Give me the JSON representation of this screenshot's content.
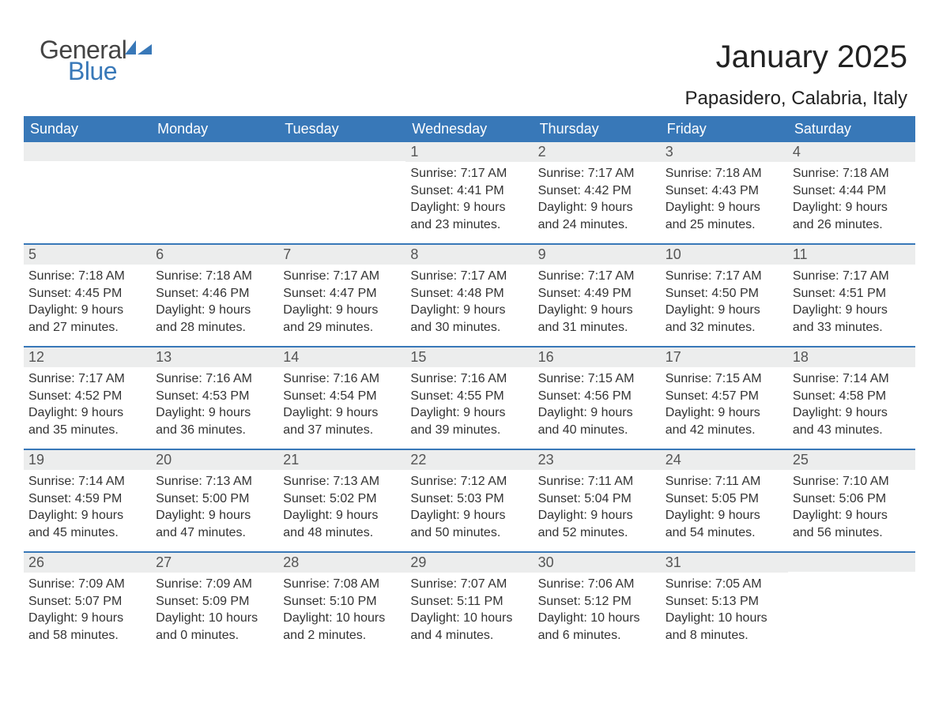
{
  "logo": {
    "text1": "General",
    "text2": "Blue",
    "color1": "#444444",
    "color2": "#3878b8"
  },
  "title": "January 2025",
  "subtitle": "Papasidero, Calabria, Italy",
  "colors": {
    "header_bg": "#3878b8",
    "header_text": "#ffffff",
    "daynum_bg": "#eceded",
    "text": "#333333",
    "page_bg": "#ffffff"
  },
  "typography": {
    "title_fontsize": 40,
    "subtitle_fontsize": 24,
    "weekday_fontsize": 18,
    "daynum_fontsize": 18,
    "body_fontsize": 16,
    "font_family": "Arial"
  },
  "weekdays": [
    "Sunday",
    "Monday",
    "Tuesday",
    "Wednesday",
    "Thursday",
    "Friday",
    "Saturday"
  ],
  "weeks": [
    [
      {
        "n": "",
        "sunrise": "",
        "sunset": "",
        "day_h": "",
        "day_m": ""
      },
      {
        "n": "",
        "sunrise": "",
        "sunset": "",
        "day_h": "",
        "day_m": ""
      },
      {
        "n": "",
        "sunrise": "",
        "sunset": "",
        "day_h": "",
        "day_m": ""
      },
      {
        "n": "1",
        "sunrise": "7:17 AM",
        "sunset": "4:41 PM",
        "day_h": "9",
        "day_m": "23"
      },
      {
        "n": "2",
        "sunrise": "7:17 AM",
        "sunset": "4:42 PM",
        "day_h": "9",
        "day_m": "24"
      },
      {
        "n": "3",
        "sunrise": "7:18 AM",
        "sunset": "4:43 PM",
        "day_h": "9",
        "day_m": "25"
      },
      {
        "n": "4",
        "sunrise": "7:18 AM",
        "sunset": "4:44 PM",
        "day_h": "9",
        "day_m": "26"
      }
    ],
    [
      {
        "n": "5",
        "sunrise": "7:18 AM",
        "sunset": "4:45 PM",
        "day_h": "9",
        "day_m": "27"
      },
      {
        "n": "6",
        "sunrise": "7:18 AM",
        "sunset": "4:46 PM",
        "day_h": "9",
        "day_m": "28"
      },
      {
        "n": "7",
        "sunrise": "7:17 AM",
        "sunset": "4:47 PM",
        "day_h": "9",
        "day_m": "29"
      },
      {
        "n": "8",
        "sunrise": "7:17 AM",
        "sunset": "4:48 PM",
        "day_h": "9",
        "day_m": "30"
      },
      {
        "n": "9",
        "sunrise": "7:17 AM",
        "sunset": "4:49 PM",
        "day_h": "9",
        "day_m": "31"
      },
      {
        "n": "10",
        "sunrise": "7:17 AM",
        "sunset": "4:50 PM",
        "day_h": "9",
        "day_m": "32"
      },
      {
        "n": "11",
        "sunrise": "7:17 AM",
        "sunset": "4:51 PM",
        "day_h": "9",
        "day_m": "33"
      }
    ],
    [
      {
        "n": "12",
        "sunrise": "7:17 AM",
        "sunset": "4:52 PM",
        "day_h": "9",
        "day_m": "35"
      },
      {
        "n": "13",
        "sunrise": "7:16 AM",
        "sunset": "4:53 PM",
        "day_h": "9",
        "day_m": "36"
      },
      {
        "n": "14",
        "sunrise": "7:16 AM",
        "sunset": "4:54 PM",
        "day_h": "9",
        "day_m": "37"
      },
      {
        "n": "15",
        "sunrise": "7:16 AM",
        "sunset": "4:55 PM",
        "day_h": "9",
        "day_m": "39"
      },
      {
        "n": "16",
        "sunrise": "7:15 AM",
        "sunset": "4:56 PM",
        "day_h": "9",
        "day_m": "40"
      },
      {
        "n": "17",
        "sunrise": "7:15 AM",
        "sunset": "4:57 PM",
        "day_h": "9",
        "day_m": "42"
      },
      {
        "n": "18",
        "sunrise": "7:14 AM",
        "sunset": "4:58 PM",
        "day_h": "9",
        "day_m": "43"
      }
    ],
    [
      {
        "n": "19",
        "sunrise": "7:14 AM",
        "sunset": "4:59 PM",
        "day_h": "9",
        "day_m": "45"
      },
      {
        "n": "20",
        "sunrise": "7:13 AM",
        "sunset": "5:00 PM",
        "day_h": "9",
        "day_m": "47"
      },
      {
        "n": "21",
        "sunrise": "7:13 AM",
        "sunset": "5:02 PM",
        "day_h": "9",
        "day_m": "48"
      },
      {
        "n": "22",
        "sunrise": "7:12 AM",
        "sunset": "5:03 PM",
        "day_h": "9",
        "day_m": "50"
      },
      {
        "n": "23",
        "sunrise": "7:11 AM",
        "sunset": "5:04 PM",
        "day_h": "9",
        "day_m": "52"
      },
      {
        "n": "24",
        "sunrise": "7:11 AM",
        "sunset": "5:05 PM",
        "day_h": "9",
        "day_m": "54"
      },
      {
        "n": "25",
        "sunrise": "7:10 AM",
        "sunset": "5:06 PM",
        "day_h": "9",
        "day_m": "56"
      }
    ],
    [
      {
        "n": "26",
        "sunrise": "7:09 AM",
        "sunset": "5:07 PM",
        "day_h": "9",
        "day_m": "58"
      },
      {
        "n": "27",
        "sunrise": "7:09 AM",
        "sunset": "5:09 PM",
        "day_h": "10",
        "day_m": "0"
      },
      {
        "n": "28",
        "sunrise": "7:08 AM",
        "sunset": "5:10 PM",
        "day_h": "10",
        "day_m": "2"
      },
      {
        "n": "29",
        "sunrise": "7:07 AM",
        "sunset": "5:11 PM",
        "day_h": "10",
        "day_m": "4"
      },
      {
        "n": "30",
        "sunrise": "7:06 AM",
        "sunset": "5:12 PM",
        "day_h": "10",
        "day_m": "6"
      },
      {
        "n": "31",
        "sunrise": "7:05 AM",
        "sunset": "5:13 PM",
        "day_h": "10",
        "day_m": "8"
      },
      {
        "n": "",
        "sunrise": "",
        "sunset": "",
        "day_h": "",
        "day_m": ""
      }
    ]
  ],
  "labels": {
    "sunrise": "Sunrise:",
    "sunset": "Sunset:",
    "daylight": "Daylight:",
    "hours": "hours",
    "and": "and",
    "minutes": "minutes."
  }
}
